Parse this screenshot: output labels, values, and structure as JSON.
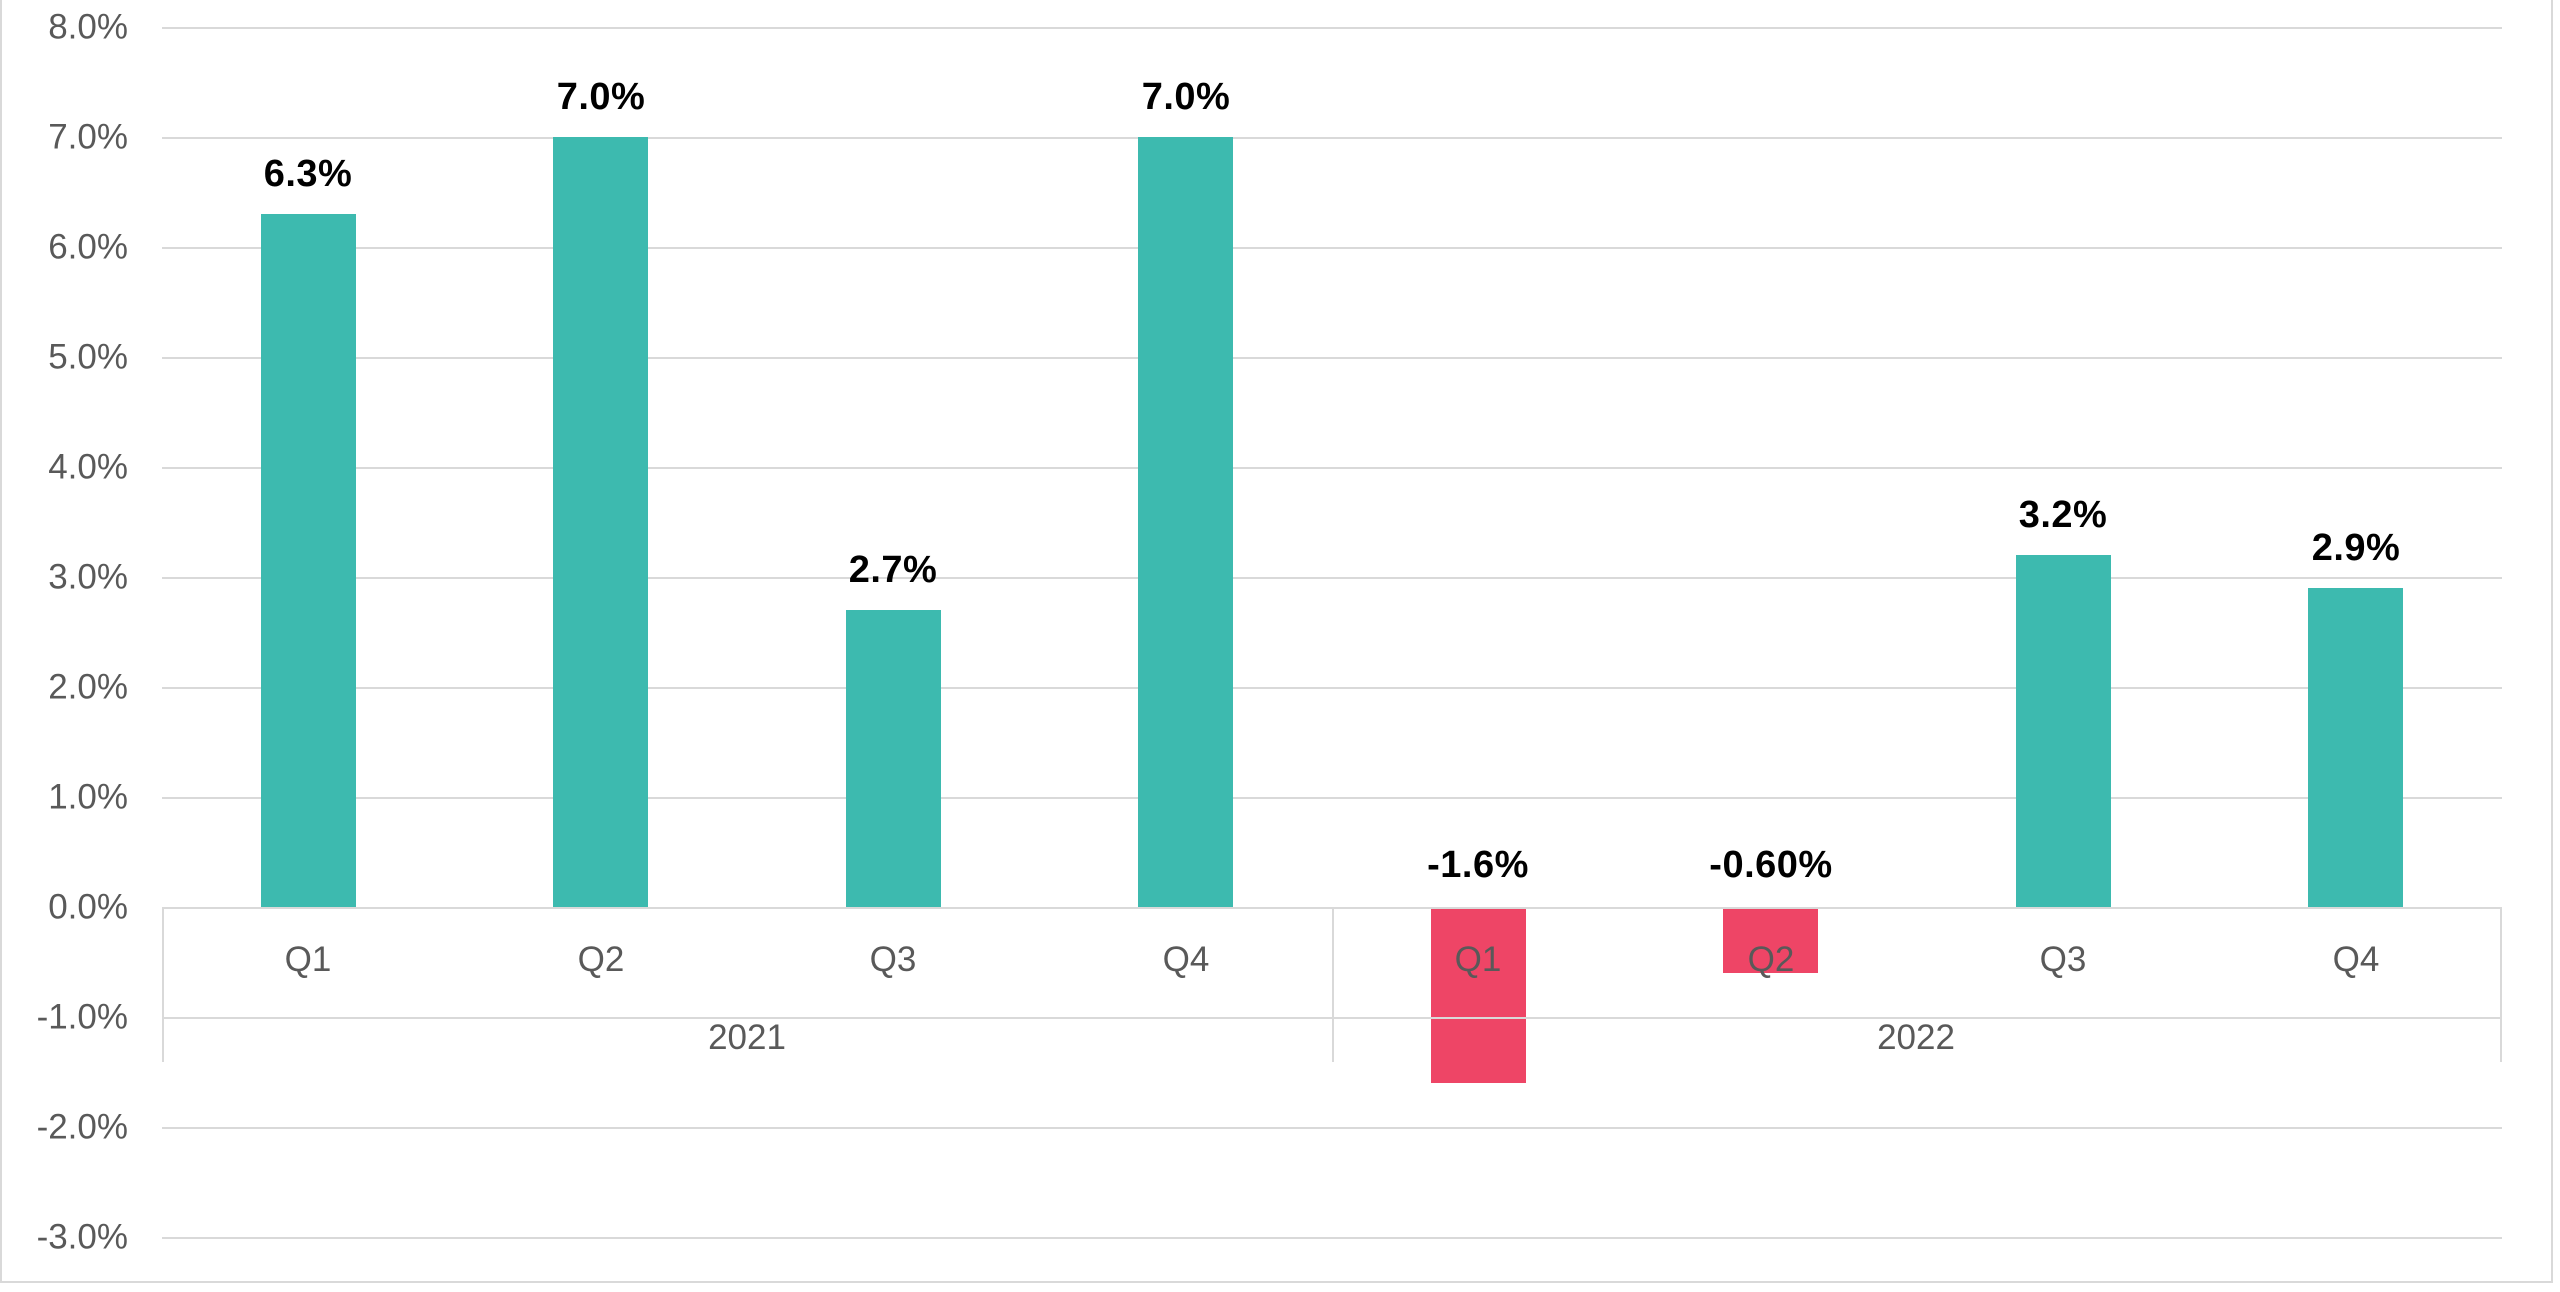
{
  "chart_data": {
    "type": "bar",
    "title": "",
    "xlabel": "",
    "ylabel": "",
    "value_format": "percent",
    "grid": true,
    "legend": "none",
    "y_axis": {
      "min": -3.0,
      "max": 8.0,
      "step": 1.0,
      "tick_values": [
        8.0,
        7.0,
        6.0,
        5.0,
        4.0,
        3.0,
        2.0,
        1.0,
        0.0,
        -1.0,
        -2.0,
        -3.0
      ],
      "tick_labels": [
        "8.0%",
        "7.0%",
        "6.0%",
        "5.0%",
        "4.0%",
        "3.0%",
        "2.0%",
        "1.0%",
        "0.0%",
        "-1.0%",
        "-2.0%",
        "-3.0%"
      ]
    },
    "groups": [
      {
        "year": "2021",
        "quarters": [
          {
            "label": "Q1",
            "value": 6.3,
            "data_label": "6.3%"
          },
          {
            "label": "Q2",
            "value": 7.0,
            "data_label": "7.0%"
          },
          {
            "label": "Q3",
            "value": 2.7,
            "data_label": "2.7%"
          },
          {
            "label": "Q4",
            "value": 7.0,
            "data_label": "7.0%"
          }
        ]
      },
      {
        "year": "2022",
        "quarters": [
          {
            "label": "Q1",
            "value": -1.6,
            "data_label": "-1.6%"
          },
          {
            "label": "Q2",
            "value": -0.6,
            "data_label": "-0.60%"
          },
          {
            "label": "Q3",
            "value": 3.2,
            "data_label": "3.2%"
          },
          {
            "label": "Q4",
            "value": 2.9,
            "data_label": "2.9%"
          }
        ]
      }
    ],
    "colors": {
      "positive_bar": "#3DBAAF",
      "negative_bar": "#EE4566",
      "gridline": "#D9D9D9",
      "axis_line": "#D9D9D9",
      "chart_border": "#D9D9D9",
      "axis_text": "#595959",
      "data_label_text": "#000000",
      "background": "#FFFFFF"
    }
  }
}
